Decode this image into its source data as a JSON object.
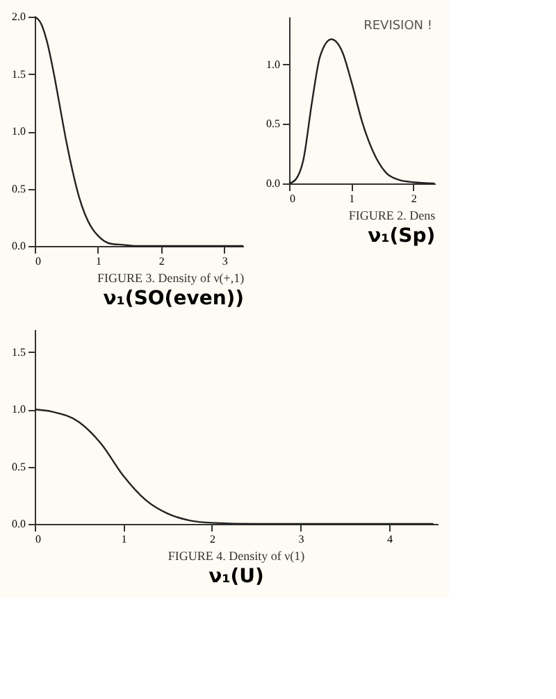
{
  "chart_data": [
    {
      "type": "line",
      "title": "FIGURE 3. Density of ν(+,1)",
      "subtitle": "ν₁(SO(even))",
      "x": [
        0,
        0.1,
        0.2,
        0.3,
        0.4,
        0.5,
        0.6,
        0.7,
        0.8,
        0.9,
        1.0,
        1.2,
        1.4,
        1.6,
        2.0,
        2.5,
        3.0,
        3.3
      ],
      "series": [
        {
          "color": "#222222",
          "values": [
            2.0,
            1.94,
            1.77,
            1.51,
            1.21,
            0.91,
            0.65,
            0.43,
            0.27,
            0.16,
            0.09,
            0.02,
            0.01,
            0,
            0,
            0,
            0,
            0
          ]
        }
      ],
      "xlim": [
        0,
        3.3
      ],
      "ylim": [
        0,
        2.0
      ],
      "xticks": [
        0,
        1,
        2,
        3
      ],
      "yticks": [
        {
          "value": 0,
          "label": "0.0"
        },
        {
          "value": 0.5,
          "label": "0.5"
        },
        {
          "value": 1,
          "label": "1.0"
        },
        {
          "value": 1.5,
          "label": "1.5"
        },
        {
          "value": 2,
          "label": "2.0"
        }
      ],
      "grid": false
    },
    {
      "type": "line",
      "title": "FIGURE 2. Dens",
      "subtitle": "ν₁(Sp)",
      "annotations": [
        "REVISION !"
      ],
      "x": [
        0,
        0.1,
        0.23,
        0.37,
        0.5,
        0.68,
        0.86,
        1.0,
        1.18,
        1.35,
        1.56,
        1.77,
        2.0,
        2.34
      ],
      "series": [
        {
          "color": "#222222",
          "values": [
            0,
            0.03,
            0.2,
            0.69,
            1.07,
            1.21,
            1.1,
            0.86,
            0.51,
            0.27,
            0.09,
            0.03,
            0.01,
            0
          ]
        }
      ],
      "xlim": [
        0,
        2.35
      ],
      "ylim": [
        0,
        1.4
      ],
      "xticks": [
        0,
        1,
        2
      ],
      "yticks": [
        {
          "value": 0,
          "label": "0.0"
        },
        {
          "value": 0.5,
          "label": "0.5"
        },
        {
          "value": 1,
          "label": "1.0"
        }
      ],
      "grid": false
    },
    {
      "type": "line",
      "title": "FIGURE 4. Density of ν(1)",
      "subtitle": "ν₁(U)",
      "x": [
        0,
        0.2,
        0.5,
        0.75,
        1.0,
        1.25,
        1.5,
        1.75,
        2.0,
        2.5,
        3.0,
        3.5,
        4.0,
        4.5
      ],
      "series": [
        {
          "color": "#222222",
          "values": [
            1.0,
            0.98,
            0.89,
            0.7,
            0.42,
            0.21,
            0.09,
            0.03,
            0.01,
            0,
            0,
            0,
            0,
            0
          ]
        }
      ],
      "xlim": [
        0,
        4.55
      ],
      "ylim": [
        0,
        1.7
      ],
      "xticks": [
        0,
        1,
        2,
        3,
        4
      ],
      "yticks": [
        {
          "value": 0,
          "label": "0.0"
        },
        {
          "value": 0.5,
          "label": "0.5"
        },
        {
          "value": 1,
          "label": "1.0"
        },
        {
          "value": 1.5,
          "label": "1.5"
        }
      ],
      "grid": false
    }
  ]
}
